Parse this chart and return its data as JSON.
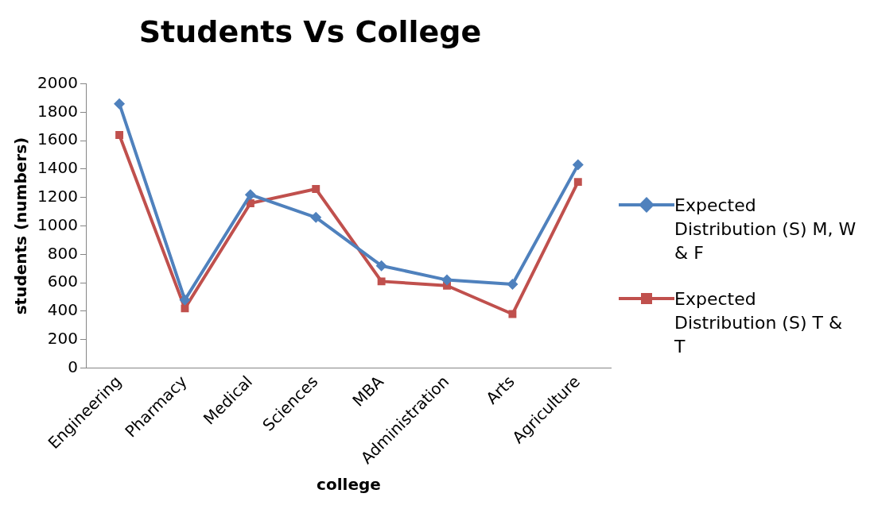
{
  "chart_data": {
    "type": "line",
    "title": "Students Vs College",
    "xlabel": "college",
    "ylabel": "students (numbers)",
    "categories": [
      "Engineering",
      "Pharmacy",
      "Medical",
      "Sciences",
      "MBA",
      "Administration",
      "Arts",
      "Agriculture"
    ],
    "series": [
      {
        "name": "Expected Distribution (S) M, W & F",
        "color": "#4f81bd",
        "marker": "diamond",
        "values": [
          1860,
          480,
          1220,
          1060,
          720,
          620,
          590,
          1430
        ]
      },
      {
        "name": "Expected Distribution (S) T & T",
        "color": "#c0504d",
        "marker": "square",
        "values": [
          1640,
          420,
          1160,
          1260,
          610,
          580,
          380,
          1310
        ]
      }
    ],
    "ylim": [
      0,
      2000
    ],
    "yticks": [
      0,
      200,
      400,
      600,
      800,
      1000,
      1200,
      1400,
      1600,
      1800,
      2000
    ],
    "grid": false,
    "legend": "right"
  }
}
